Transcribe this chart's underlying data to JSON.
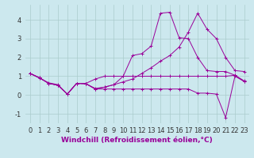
{
  "background_color": "#cce8ee",
  "grid_color": "#aacccc",
  "line_color": "#990099",
  "xlabel": "Windchill (Refroidissement éolien,°C)",
  "xlabel_fontsize": 6.5,
  "tick_fontsize": 6,
  "xlim": [
    -0.5,
    23.5
  ],
  "ylim": [
    -1.5,
    4.8
  ],
  "yticks": [
    -1,
    0,
    1,
    2,
    3,
    4
  ],
  "xticks": [
    0,
    1,
    2,
    3,
    4,
    5,
    6,
    7,
    8,
    9,
    10,
    11,
    12,
    13,
    14,
    15,
    16,
    17,
    18,
    19,
    20,
    21,
    22,
    23
  ],
  "lines": [
    [
      1.15,
      0.9,
      0.65,
      0.55,
      0.05,
      0.62,
      0.62,
      0.85,
      1.0,
      1.0,
      1.0,
      1.0,
      1.0,
      1.0,
      1.0,
      1.0,
      1.0,
      1.0,
      1.0,
      1.0,
      1.0,
      1.0,
      1.05,
      0.75
    ],
    [
      1.15,
      0.92,
      0.62,
      0.52,
      0.05,
      0.62,
      0.6,
      0.32,
      0.32,
      0.32,
      0.32,
      0.32,
      0.32,
      0.32,
      0.32,
      0.32,
      0.32,
      0.32,
      0.1,
      0.1,
      0.05,
      -1.2,
      1.0,
      0.72
    ],
    [
      1.15,
      0.92,
      0.62,
      0.52,
      0.05,
      0.62,
      0.6,
      0.32,
      0.42,
      0.55,
      0.7,
      0.85,
      1.15,
      1.45,
      1.8,
      2.1,
      2.55,
      3.35,
      4.35,
      3.5,
      3.0,
      2.0,
      1.3,
      1.25
    ],
    [
      1.15,
      0.92,
      0.62,
      0.52,
      0.05,
      0.62,
      0.6,
      0.35,
      0.42,
      0.55,
      1.0,
      2.1,
      2.2,
      2.6,
      4.35,
      4.4,
      3.05,
      3.0,
      2.0,
      1.3,
      1.25,
      1.25,
      1.05,
      0.72
    ]
  ]
}
